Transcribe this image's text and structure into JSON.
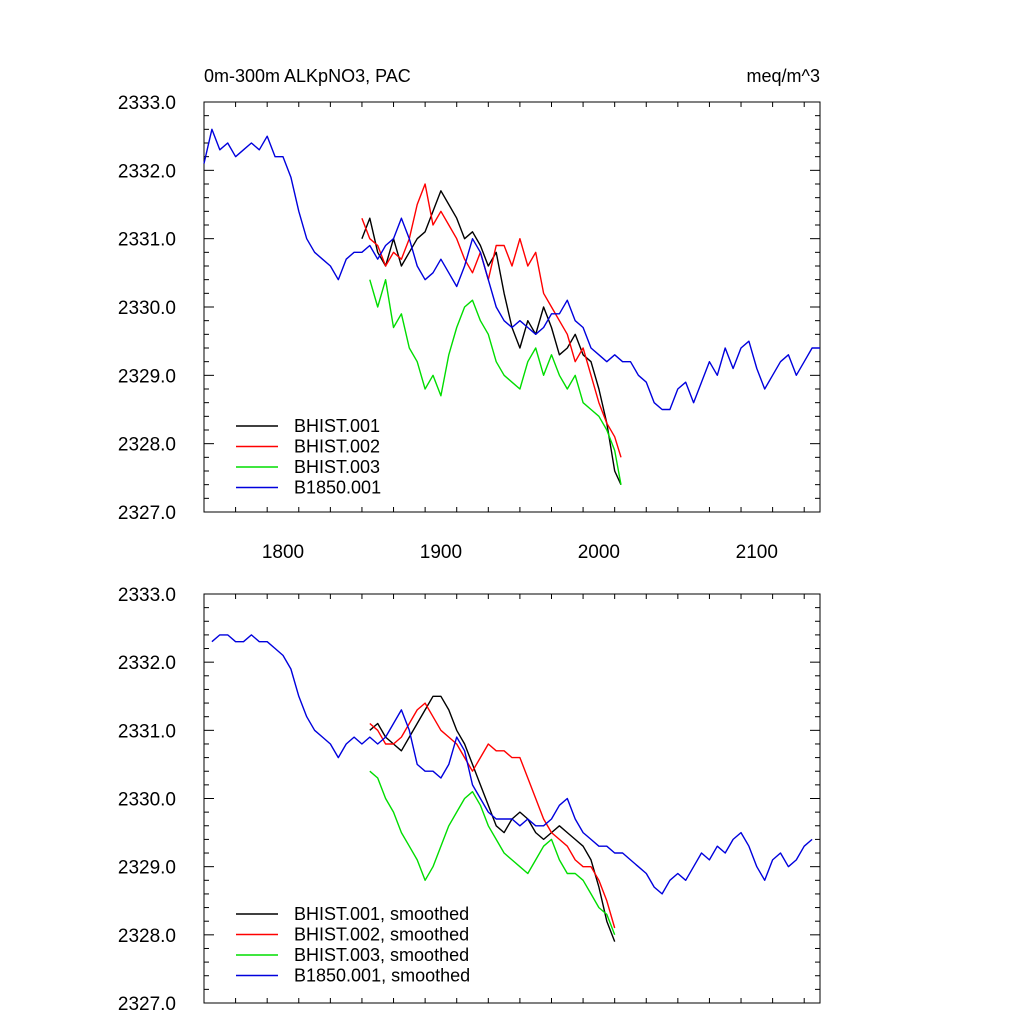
{
  "chart_data": [
    {
      "type": "line",
      "title": "0m-300m ALKpNO3, PAC",
      "units": "meq/m^3",
      "xlim": [
        1750,
        2140
      ],
      "ylim": [
        2327.0,
        2333.0
      ],
      "xticks": [
        1800,
        1900,
        2000,
        2100
      ],
      "xtick_labels": [
        "1800",
        "1900",
        "2000",
        "2100"
      ],
      "yticks": [
        2327.0,
        2328.0,
        2329.0,
        2330.0,
        2331.0,
        2332.0,
        2333.0
      ],
      "ytick_labels": [
        "2327.0",
        "2328.0",
        "2329.0",
        "2330.0",
        "2331.0",
        "2332.0",
        "2333.0"
      ],
      "legend_position": "lower-left",
      "series": [
        {
          "name": "BHIST.001",
          "color": "#000000",
          "x": [
            1850,
            1855,
            1860,
            1865,
            1870,
            1875,
            1880,
            1885,
            1890,
            1895,
            1900,
            1905,
            1910,
            1915,
            1920,
            1925,
            1930,
            1935,
            1940,
            1945,
            1950,
            1955,
            1960,
            1965,
            1970,
            1975,
            1980,
            1985,
            1990,
            1995,
            2000,
            2005,
            2010,
            2014
          ],
          "y": [
            2331.0,
            2331.3,
            2330.8,
            2330.6,
            2331.0,
            2330.6,
            2330.8,
            2331.0,
            2331.1,
            2331.4,
            2331.7,
            2331.5,
            2331.3,
            2331.0,
            2331.1,
            2330.9,
            2330.6,
            2330.8,
            2330.2,
            2329.7,
            2329.4,
            2329.8,
            2329.6,
            2330.0,
            2329.7,
            2329.3,
            2329.4,
            2329.6,
            2329.3,
            2329.2,
            2328.8,
            2328.3,
            2327.6,
            2327.4
          ]
        },
        {
          "name": "BHIST.002",
          "color": "#ff0000",
          "x": [
            1850,
            1855,
            1860,
            1865,
            1870,
            1875,
            1880,
            1885,
            1890,
            1895,
            1900,
            1905,
            1910,
            1915,
            1920,
            1925,
            1930,
            1935,
            1940,
            1945,
            1950,
            1955,
            1960,
            1965,
            1970,
            1975,
            1980,
            1985,
            1990,
            1995,
            2000,
            2005,
            2010,
            2014
          ],
          "y": [
            2331.3,
            2331.0,
            2330.9,
            2330.6,
            2330.8,
            2330.7,
            2331.0,
            2331.5,
            2331.8,
            2331.2,
            2331.4,
            2331.2,
            2331.0,
            2330.7,
            2330.5,
            2330.8,
            2330.4,
            2330.9,
            2330.9,
            2330.6,
            2331.0,
            2330.6,
            2330.8,
            2330.2,
            2330.0,
            2329.8,
            2329.6,
            2329.2,
            2329.4,
            2329.0,
            2328.6,
            2328.3,
            2328.1,
            2327.8
          ]
        },
        {
          "name": "BHIST.003",
          "color": "#00dd00",
          "x": [
            1855,
            1860,
            1865,
            1870,
            1875,
            1880,
            1885,
            1890,
            1895,
            1900,
            1905,
            1910,
            1915,
            1920,
            1925,
            1930,
            1935,
            1940,
            1945,
            1950,
            1955,
            1960,
            1965,
            1970,
            1975,
            1980,
            1985,
            1990,
            1995,
            2000,
            2005,
            2010,
            2014
          ],
          "y": [
            2330.4,
            2330.0,
            2330.4,
            2329.7,
            2329.9,
            2329.4,
            2329.2,
            2328.8,
            2329.0,
            2328.7,
            2329.3,
            2329.7,
            2330.0,
            2330.1,
            2329.8,
            2329.6,
            2329.2,
            2329.0,
            2328.9,
            2328.8,
            2329.2,
            2329.4,
            2329.0,
            2329.3,
            2329.0,
            2328.8,
            2329.0,
            2328.6,
            2328.5,
            2328.4,
            2328.2,
            2327.9,
            2327.4
          ]
        },
        {
          "name": "B1850.001",
          "color": "#0000dd",
          "x": [
            1750,
            1755,
            1760,
            1765,
            1770,
            1775,
            1780,
            1785,
            1790,
            1795,
            1800,
            1805,
            1810,
            1815,
            1820,
            1825,
            1830,
            1835,
            1840,
            1845,
            1850,
            1855,
            1860,
            1865,
            1870,
            1875,
            1880,
            1885,
            1890,
            1895,
            1900,
            1905,
            1910,
            1915,
            1920,
            1925,
            1930,
            1935,
            1940,
            1945,
            1950,
            1955,
            1960,
            1965,
            1970,
            1975,
            1980,
            1985,
            1990,
            1995,
            2000,
            2005,
            2010,
            2015,
            2020,
            2025,
            2030,
            2035,
            2040,
            2045,
            2050,
            2055,
            2060,
            2065,
            2070,
            2075,
            2080,
            2085,
            2090,
            2095,
            2100,
            2105,
            2110,
            2115,
            2120,
            2125,
            2130,
            2135,
            2140
          ],
          "y": [
            2332.1,
            2332.6,
            2332.3,
            2332.4,
            2332.2,
            2332.3,
            2332.4,
            2332.3,
            2332.5,
            2332.2,
            2332.2,
            2331.9,
            2331.4,
            2331.0,
            2330.8,
            2330.7,
            2330.6,
            2330.4,
            2330.7,
            2330.8,
            2330.8,
            2330.9,
            2330.7,
            2330.9,
            2331.0,
            2331.3,
            2331.0,
            2330.6,
            2330.4,
            2330.5,
            2330.7,
            2330.5,
            2330.3,
            2330.6,
            2331.0,
            2330.8,
            2330.4,
            2330.0,
            2329.8,
            2329.7,
            2329.8,
            2329.7,
            2329.6,
            2329.7,
            2329.9,
            2329.9,
            2330.1,
            2329.8,
            2329.7,
            2329.4,
            2329.3,
            2329.2,
            2329.3,
            2329.2,
            2329.2,
            2329.0,
            2328.9,
            2328.6,
            2328.5,
            2328.5,
            2328.8,
            2328.9,
            2328.6,
            2328.9,
            2329.2,
            2329.0,
            2329.4,
            2329.1,
            2329.4,
            2329.5,
            2329.1,
            2328.8,
            2329.0,
            2329.2,
            2329.3,
            2329.0,
            2329.2,
            2329.4,
            2329.4
          ]
        }
      ]
    },
    {
      "type": "line",
      "xlim": [
        1750,
        2140
      ],
      "ylim": [
        2327.0,
        2333.0
      ],
      "xticks": [
        1800,
        1900,
        2000,
        2100
      ],
      "yticks": [
        2327.0,
        2328.0,
        2329.0,
        2330.0,
        2331.0,
        2332.0,
        2333.0
      ],
      "ytick_labels": [
        "2327.0",
        "2328.0",
        "2329.0",
        "2330.0",
        "2331.0",
        "2332.0",
        "2333.0"
      ],
      "legend_position": "lower-left",
      "series": [
        {
          "name": "BHIST.001, smoothed",
          "color": "#000000",
          "x": [
            1855,
            1860,
            1865,
            1870,
            1875,
            1880,
            1885,
            1890,
            1895,
            1900,
            1905,
            1910,
            1915,
            1920,
            1925,
            1930,
            1935,
            1940,
            1945,
            1950,
            1955,
            1960,
            1965,
            1970,
            1975,
            1980,
            1985,
            1990,
            1995,
            2000,
            2005,
            2010
          ],
          "y": [
            2331.0,
            2331.1,
            2330.9,
            2330.8,
            2330.7,
            2330.9,
            2331.1,
            2331.3,
            2331.5,
            2331.5,
            2331.3,
            2331.0,
            2330.8,
            2330.5,
            2330.2,
            2329.9,
            2329.6,
            2329.5,
            2329.7,
            2329.8,
            2329.7,
            2329.5,
            2329.4,
            2329.5,
            2329.6,
            2329.5,
            2329.4,
            2329.3,
            2329.1,
            2328.7,
            2328.2,
            2327.9
          ]
        },
        {
          "name": "BHIST.002, smoothed",
          "color": "#ff0000",
          "x": [
            1855,
            1860,
            1865,
            1870,
            1875,
            1880,
            1885,
            1890,
            1895,
            1900,
            1905,
            1910,
            1915,
            1920,
            1925,
            1930,
            1935,
            1940,
            1945,
            1950,
            1955,
            1960,
            1965,
            1970,
            1975,
            1980,
            1985,
            1990,
            1995,
            2000,
            2005,
            2010
          ],
          "y": [
            2331.1,
            2331.0,
            2330.8,
            2330.8,
            2330.9,
            2331.1,
            2331.3,
            2331.4,
            2331.2,
            2331.0,
            2330.9,
            2330.8,
            2330.6,
            2330.4,
            2330.6,
            2330.8,
            2330.7,
            2330.7,
            2330.6,
            2330.6,
            2330.3,
            2330.0,
            2329.7,
            2329.5,
            2329.4,
            2329.3,
            2329.1,
            2329.0,
            2329.0,
            2328.8,
            2328.5,
            2328.1
          ]
        },
        {
          "name": "BHIST.003, smoothed",
          "color": "#00dd00",
          "x": [
            1855,
            1860,
            1865,
            1870,
            1875,
            1880,
            1885,
            1890,
            1895,
            1900,
            1905,
            1910,
            1915,
            1920,
            1925,
            1930,
            1935,
            1940,
            1945,
            1950,
            1955,
            1960,
            1965,
            1970,
            1975,
            1980,
            1985,
            1990,
            1995,
            2000,
            2005,
            2010
          ],
          "y": [
            2330.4,
            2330.3,
            2330.0,
            2329.8,
            2329.5,
            2329.3,
            2329.1,
            2328.8,
            2329.0,
            2329.3,
            2329.6,
            2329.8,
            2330.0,
            2330.1,
            2329.9,
            2329.6,
            2329.4,
            2329.2,
            2329.1,
            2329.0,
            2328.9,
            2329.1,
            2329.3,
            2329.4,
            2329.1,
            2328.9,
            2328.9,
            2328.8,
            2328.6,
            2328.4,
            2328.3,
            2328.0
          ]
        },
        {
          "name": "B1850.001, smoothed",
          "color": "#0000dd",
          "x": [
            1755,
            1760,
            1765,
            1770,
            1775,
            1780,
            1785,
            1790,
            1795,
            1800,
            1805,
            1810,
            1815,
            1820,
            1825,
            1830,
            1835,
            1840,
            1845,
            1850,
            1855,
            1860,
            1865,
            1870,
            1875,
            1880,
            1885,
            1890,
            1895,
            1900,
            1905,
            1910,
            1915,
            1920,
            1925,
            1930,
            1935,
            1940,
            1945,
            1950,
            1955,
            1960,
            1965,
            1970,
            1975,
            1980,
            1985,
            1990,
            1995,
            2000,
            2005,
            2010,
            2015,
            2020,
            2025,
            2030,
            2035,
            2040,
            2045,
            2050,
            2055,
            2060,
            2065,
            2070,
            2075,
            2080,
            2085,
            2090,
            2095,
            2100,
            2105,
            2110,
            2115,
            2120,
            2125,
            2130,
            2135
          ],
          "y": [
            2332.3,
            2332.4,
            2332.4,
            2332.3,
            2332.3,
            2332.4,
            2332.3,
            2332.3,
            2332.2,
            2332.1,
            2331.9,
            2331.5,
            2331.2,
            2331.0,
            2330.9,
            2330.8,
            2330.6,
            2330.8,
            2330.9,
            2330.8,
            2330.9,
            2330.8,
            2330.9,
            2331.1,
            2331.3,
            2331.0,
            2330.5,
            2330.4,
            2330.4,
            2330.3,
            2330.5,
            2330.9,
            2330.7,
            2330.2,
            2330.0,
            2329.8,
            2329.7,
            2329.7,
            2329.7,
            2329.6,
            2329.7,
            2329.6,
            2329.6,
            2329.7,
            2329.9,
            2330.0,
            2329.7,
            2329.5,
            2329.4,
            2329.3,
            2329.3,
            2329.2,
            2329.2,
            2329.1,
            2329.0,
            2328.9,
            2328.7,
            2328.6,
            2328.8,
            2328.9,
            2328.8,
            2329.0,
            2329.2,
            2329.1,
            2329.3,
            2329.2,
            2329.4,
            2329.5,
            2329.3,
            2329.0,
            2328.8,
            2329.1,
            2329.2,
            2329.0,
            2329.1,
            2329.3,
            2329.4
          ]
        }
      ]
    }
  ]
}
